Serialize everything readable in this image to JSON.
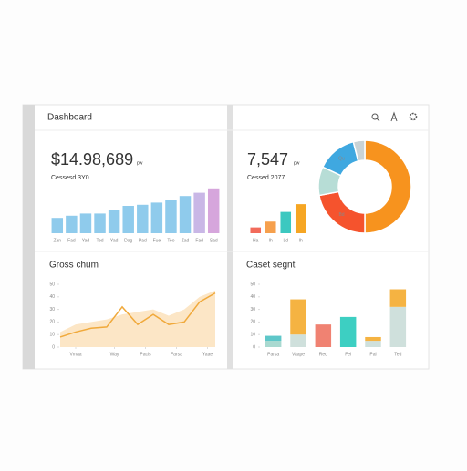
{
  "header": {
    "title": "Dashboard"
  },
  "revenue": {
    "value": "$14.98,689",
    "unit": "pw",
    "subtitle": "Cessesd 3Y0",
    "chart": {
      "type": "bar",
      "categories": [
        "Zan",
        "Fad",
        "Yad",
        "Ted",
        "Yad",
        "Dag",
        "Pad",
        "Fue",
        "Teo",
        "Zad",
        "Fad",
        "Sad"
      ],
      "values": [
        14,
        16,
        18,
        18,
        21,
        25,
        26,
        28,
        30,
        34,
        37,
        41
      ],
      "colors": [
        "#8fcbec",
        "#8fcbec",
        "#8fcbec",
        "#8fcbec",
        "#8fcbec",
        "#8fcbec",
        "#8fcbec",
        "#8fcbec",
        "#8fcbec",
        "#8fcbec",
        "#c9b7e6",
        "#d6a6dc"
      ],
      "ylim": [
        0,
        45
      ]
    }
  },
  "users": {
    "value": "7,547",
    "unit": "pw",
    "subtitle": "Cessed 2077",
    "chart": {
      "type": "bar",
      "categories": [
        "Ha",
        "Ih",
        "Ld",
        "Ih"
      ],
      "values": [
        6,
        12,
        22,
        30
      ],
      "colors": [
        "#f26b5b",
        "#f6a04d",
        "#3cc8c0",
        "#f6a623"
      ],
      "ylim": [
        0,
        32
      ]
    },
    "donut": {
      "type": "pie",
      "categories": [
        null,
        "Bd",
        null,
        "Qu",
        null
      ],
      "values": [
        50,
        22,
        10,
        14,
        4
      ],
      "colors": [
        "#f7931e",
        "#f5532d",
        "#b7ddd6",
        "#3fa8e0",
        "#c9d3d6"
      ]
    }
  },
  "growth": {
    "title": "Gross chum",
    "chart": {
      "type": "area",
      "xlim": [
        0,
        10
      ],
      "ylim": [
        0,
        50
      ],
      "yticks": [
        0,
        10,
        20,
        30,
        40,
        50
      ],
      "xticks": [
        {
          "value": 1,
          "label": "Vmaa"
        },
        {
          "value": 3.5,
          "label": "Way"
        },
        {
          "value": 5.5,
          "label": "Pacls"
        },
        {
          "value": 7.5,
          "label": "Farsa"
        },
        {
          "value": 9.5,
          "label": "Yaae"
        }
      ],
      "x": [
        0,
        1,
        2,
        3,
        4,
        5,
        6,
        7,
        8,
        9,
        10
      ],
      "series": [
        {
          "color": "#fce6c6",
          "values": [
            12,
            18,
            20,
            22,
            26,
            28,
            30,
            25,
            30,
            40,
            45
          ]
        },
        {
          "color": "#f0a93b",
          "values": [
            8,
            12,
            15,
            16,
            32,
            18,
            26,
            18,
            20,
            36,
            43
          ]
        }
      ]
    }
  },
  "segments": {
    "title": "Caset segnt",
    "chart": {
      "type": "stacked-bar",
      "categories": [
        "Parsa",
        "Vaape",
        "Red",
        "Fei",
        "Pal",
        "Ted"
      ],
      "ylim": [
        0,
        50
      ],
      "yticks": [
        0,
        10,
        20,
        30,
        40,
        50
      ],
      "series": [
        {
          "values": [
            5,
            10,
            18,
            24,
            5,
            32
          ],
          "colors": [
            "#a9d9d0",
            "#cfe0dc",
            "#f08272",
            "#3dcfc2",
            "#cfe0dc",
            "#cfe0dc"
          ]
        },
        {
          "values": [
            4,
            28,
            0,
            0,
            3,
            14
          ],
          "colors": [
            "#5ec7c9",
            "#f5b342",
            "#f08272",
            "#3dcfc2",
            "#f5b342",
            "#f5b342"
          ]
        }
      ]
    }
  }
}
